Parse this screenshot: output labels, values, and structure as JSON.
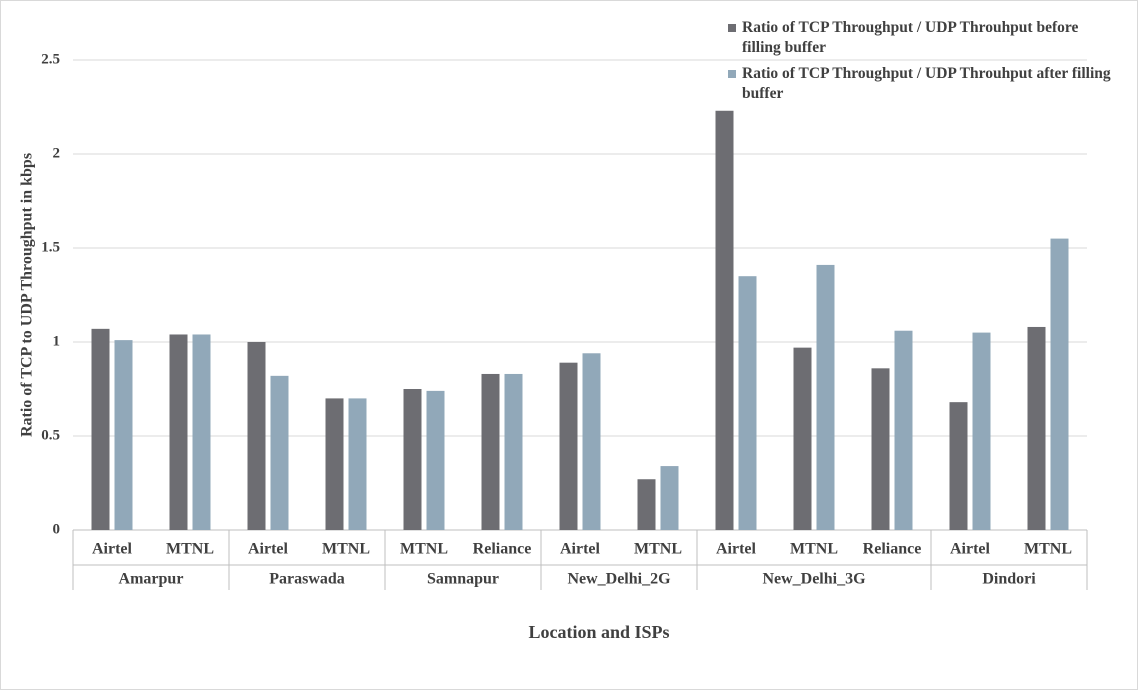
{
  "chart_data": {
    "type": "bar",
    "ylabel": "Ratio of TCP to UDP Throughput in kbps",
    "xlabel": "Location and ISPs",
    "groups": [
      {
        "name": "Amarpur",
        "categories": [
          "Airtel",
          "MTNL"
        ]
      },
      {
        "name": "Paraswada",
        "categories": [
          "Airtel",
          "MTNL"
        ]
      },
      {
        "name": "Samnapur",
        "categories": [
          "MTNL",
          "Reliance"
        ]
      },
      {
        "name": "New_Delhi_2G",
        "categories": [
          "Airtel",
          "MTNL"
        ]
      },
      {
        "name": "New_Delhi_3G",
        "categories": [
          "Airtel",
          "MTNL",
          "Reliance"
        ]
      },
      {
        "name": "Dindori",
        "categories": [
          "Airtel",
          "MTNL"
        ]
      }
    ],
    "series": [
      {
        "name": "Ratio of TCP Throughput / UDP Throuhput before filling buffer",
        "color": "#6d6d72",
        "values": [
          1.07,
          1.04,
          1.0,
          0.7,
          0.75,
          0.83,
          0.89,
          0.27,
          2.23,
          0.97,
          0.86,
          0.68,
          1.08
        ]
      },
      {
        "name": "Ratio of TCP Throughput / UDP Throuhput after filling buffer",
        "color": "#91a8b9",
        "values": [
          1.01,
          1.04,
          0.82,
          0.7,
          0.74,
          0.83,
          0.94,
          0.34,
          1.35,
          1.41,
          1.06,
          1.05,
          1.55
        ]
      }
    ],
    "ylim": [
      0,
      2.5
    ],
    "yticks": [
      0,
      0.5,
      1,
      1.5,
      2,
      2.5
    ],
    "grid": true,
    "legend": "top-right"
  }
}
